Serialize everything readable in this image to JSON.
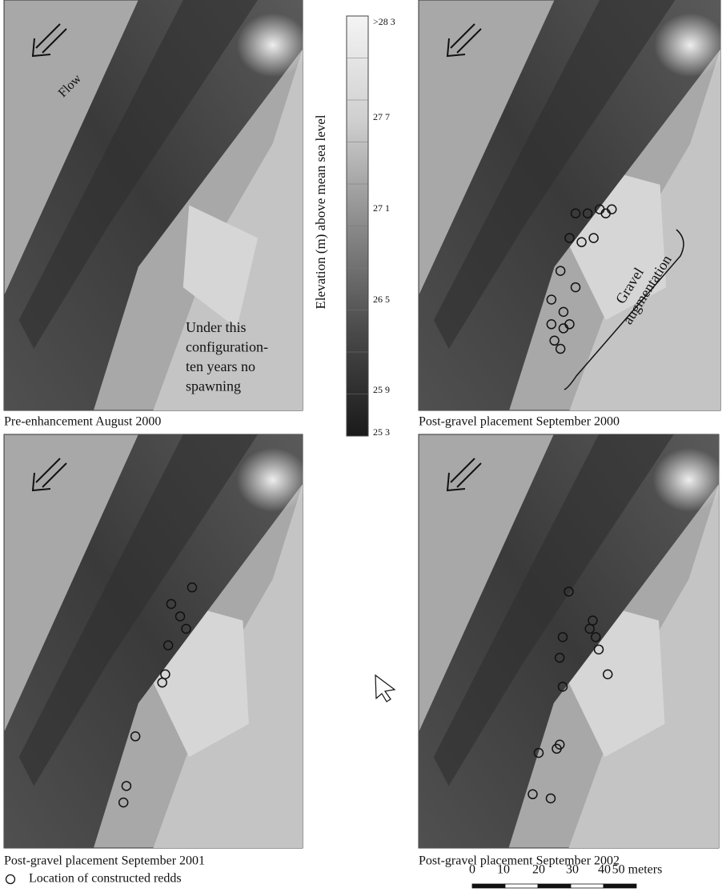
{
  "panels": [
    {
      "caption": "Pre-enhancement August 2000",
      "flow_label": "Flow",
      "note": [
        "Under this",
        "configuration-",
        "ten years no",
        "spawning"
      ]
    },
    {
      "caption": "Post-gravel placement September 2000",
      "note": [
        "Gravel",
        "augmentation"
      ]
    },
    {
      "caption": "Post-gravel placement September 2001"
    },
    {
      "caption": "Post-gravel placement September 2002"
    }
  ],
  "colorbar": {
    "title": "Elevation (m) above mean sea level",
    "labels": [
      ">28 3",
      "27 7",
      "27 1",
      "26 5",
      "25 9",
      "25 3"
    ]
  },
  "legend": {
    "label": "Location of constructed redds"
  },
  "scale_bar": {
    "labels": [
      "0",
      "10",
      "20",
      "30",
      "40",
      "50 meters"
    ]
  }
}
